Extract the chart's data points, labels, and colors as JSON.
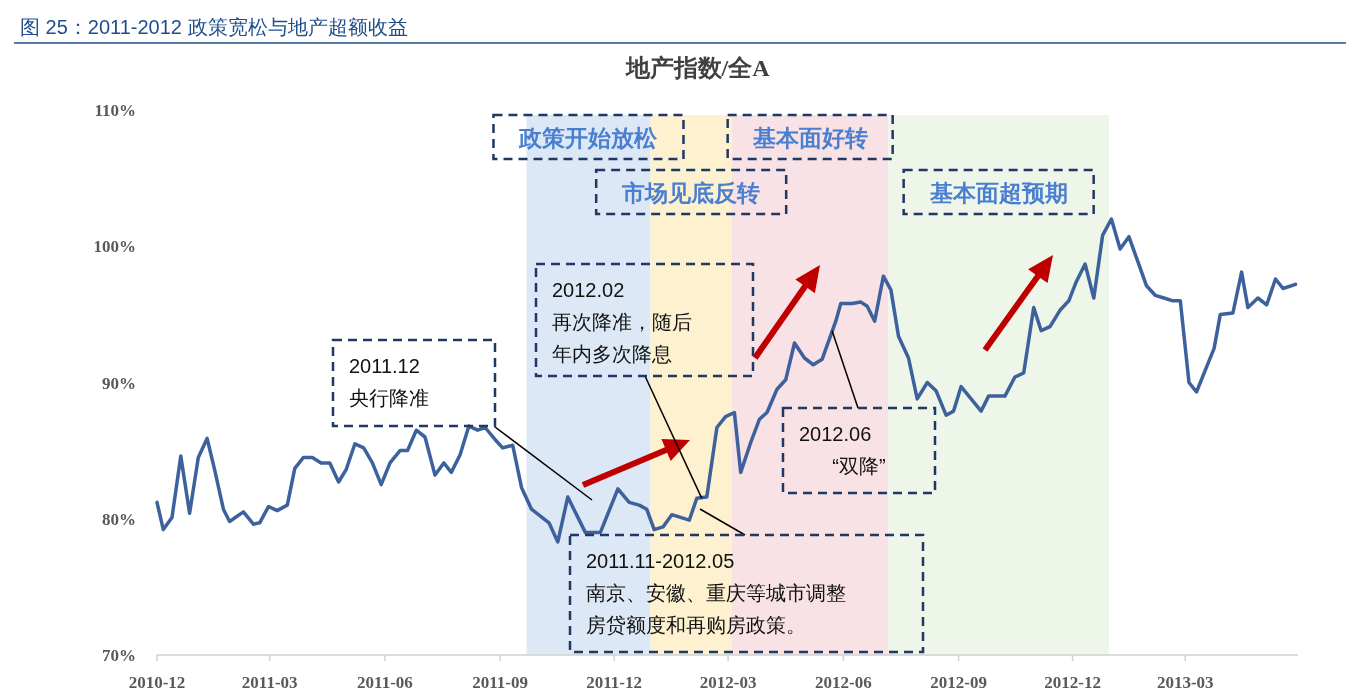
{
  "chart_data": {
    "type": "line",
    "title": "图 25：2011-2012 政策宽松与地产超额收益",
    "subtitle": "地产指数/全A",
    "xlim": [
      "2010-12-01",
      "2013-05-30"
    ],
    "xticks": [
      {
        "value": "2010-12-01",
        "label": "2010-12"
      },
      {
        "value": "2011-03-01",
        "label": "2011-03"
      },
      {
        "value": "2011-06-01",
        "label": "2011-06"
      },
      {
        "value": "2011-09-01",
        "label": "2011-09"
      },
      {
        "value": "2011-12-01",
        "label": "2011-12"
      },
      {
        "value": "2012-03-01",
        "label": "2012-03"
      },
      {
        "value": "2012-06-01",
        "label": "2012-06"
      },
      {
        "value": "2012-09-01",
        "label": "2012-09"
      },
      {
        "value": "2012-12-01",
        "label": "2012-12"
      },
      {
        "value": "2013-03-01",
        "label": "2013-03"
      }
    ],
    "ylim": [
      70,
      110
    ],
    "yticks": [
      {
        "value": 70,
        "label": "70%"
      },
      {
        "value": 80,
        "label": "80%"
      },
      {
        "value": 90,
        "label": "90%"
      },
      {
        "value": 100,
        "label": "100%"
      },
      {
        "value": 110,
        "label": "110%"
      }
    ],
    "grid": false,
    "marker": "none",
    "line_style": "solid",
    "series": [
      {
        "color": "#3d619d",
        "x": [
          "2010-12-01",
          "2010-12-06",
          "2010-12-13",
          "2010-12-20",
          "2010-12-27",
          "2011-01-03",
          "2011-01-10",
          "2011-01-16",
          "2011-01-23",
          "2011-01-28",
          "2011-02-08",
          "2011-02-16",
          "2011-02-21",
          "2011-02-28",
          "2011-03-07",
          "2011-03-15",
          "2011-03-21",
          "2011-03-28",
          "2011-04-04",
          "2011-04-11",
          "2011-04-18",
          "2011-04-25",
          "2011-05-01",
          "2011-05-08",
          "2011-05-15",
          "2011-05-22",
          "2011-05-29",
          "2011-06-05",
          "2011-06-13",
          "2011-06-19",
          "2011-06-26",
          "2011-07-03",
          "2011-07-11",
          "2011-07-18",
          "2011-07-24",
          "2011-07-31",
          "2011-08-07",
          "2011-08-14",
          "2011-08-20",
          "2011-08-28",
          "2011-09-03",
          "2011-09-11",
          "2011-09-18",
          "2011-09-26",
          "2011-10-10",
          "2011-10-17",
          "2011-10-25",
          "2011-11-08",
          "2011-11-20",
          "2011-12-04",
          "2011-12-13",
          "2011-12-21",
          "2011-12-27",
          "2012-01-02",
          "2012-01-09",
          "2012-01-16",
          "2012-01-30",
          "2012-02-05",
          "2012-02-13",
          "2012-02-21",
          "2012-02-28",
          "2012-03-06",
          "2012-03-11",
          "2012-03-19",
          "2012-03-26",
          "2012-04-01",
          "2012-04-09",
          "2012-04-16",
          "2012-04-23",
          "2012-05-01",
          "2012-05-08",
          "2012-05-15",
          "2012-05-26",
          "2012-05-30",
          "2012-06-08",
          "2012-06-15",
          "2012-06-20",
          "2012-06-26",
          "2012-07-03",
          "2012-07-09",
          "2012-07-15",
          "2012-07-23",
          "2012-07-30",
          "2012-08-07",
          "2012-08-14",
          "2012-08-22",
          "2012-08-28",
          "2012-09-03",
          "2012-09-19",
          "2012-09-25",
          "2012-10-08",
          "2012-10-16",
          "2012-10-23",
          "2012-10-31",
          "2012-11-06",
          "2012-11-13",
          "2012-11-21",
          "2012-11-28",
          "2012-12-04",
          "2012-12-11",
          "2012-12-18",
          "2012-12-25",
          "2013-01-01",
          "2013-01-08",
          "2013-01-15",
          "2013-01-22",
          "2013-01-29",
          "2013-02-05",
          "2013-02-12",
          "2013-02-19",
          "2013-02-25",
          "2013-03-04",
          "2013-03-10",
          "2013-03-17",
          "2013-03-24",
          "2013-03-29",
          "2013-04-08",
          "2013-04-15",
          "2013-04-20",
          "2013-04-28",
          "2013-05-05",
          "2013-05-12",
          "2013-05-18",
          "2013-05-28"
        ],
        "values": [
          81.2,
          79.2,
          80.1,
          84.6,
          80.4,
          84.5,
          85.9,
          83.6,
          80.7,
          79.8,
          80.5,
          79.6,
          79.7,
          80.9,
          80.6,
          81.0,
          83.7,
          84.5,
          84.5,
          84.1,
          84.1,
          82.7,
          83.6,
          85.5,
          85.2,
          84.1,
          82.5,
          84.1,
          85.0,
          85.0,
          86.5,
          86.0,
          83.2,
          84.1,
          83.4,
          84.7,
          86.8,
          86.5,
          86.7,
          85.8,
          85.2,
          85.4,
          82.3,
          80.7,
          79.7,
          78.3,
          81.6,
          79.0,
          79.0,
          82.2,
          81.2,
          81.0,
          80.7,
          79.2,
          79.4,
          80.3,
          79.9,
          81.5,
          81.6,
          86.7,
          87.5,
          87.8,
          83.4,
          85.6,
          87.3,
          87.8,
          89.5,
          90.2,
          92.9,
          91.8,
          91.3,
          91.7,
          94.5,
          95.8,
          95.8,
          95.9,
          95.6,
          94.5,
          97.8,
          96.8,
          93.4,
          91.8,
          88.8,
          90.0,
          89.4,
          87.6,
          87.9,
          89.7,
          87.9,
          89.0,
          89.0,
          90.4,
          90.7,
          95.5,
          93.8,
          94.1,
          95.3,
          96.0,
          97.4,
          98.7,
          96.2,
          100.8,
          102.0,
          99.8,
          100.7,
          98.9,
          97.1,
          96.4,
          96.2,
          96.0,
          96.0,
          90.0,
          89.3,
          90.9,
          92.5,
          95.0,
          95.1,
          98.1,
          95.5,
          96.2,
          95.7,
          97.6,
          96.9,
          97.2
        ]
      }
    ],
    "bands": [
      {
        "axis": "x",
        "from": "2011-09-22",
        "to": "2011-12-30",
        "label": "政策开始放松",
        "color": "#dce8f5"
      },
      {
        "axis": "x",
        "from": "2011-12-30",
        "to": "2012-03-04",
        "label": "市场见底反转",
        "color": "#fdf1cf"
      },
      {
        "axis": "x",
        "from": "2012-03-04",
        "to": "2012-07-07",
        "label": "基本面好转",
        "color": "#f9e2e5"
      },
      {
        "axis": "x",
        "from": "2012-07-07",
        "to": "2012-12-30",
        "label": "基本面超预期",
        "color": "#eef6ea"
      }
    ],
    "annotations": [
      "2011.12 央行降准",
      {
        "text": "2012.02 再次降准，随后年内多次降息",
        "x": "2012-02-09",
        "y": 81.5
      },
      {
        "text": "2012.06 “双降”",
        "x": "2012-05-23",
        "y": 93.8
      },
      "2011.11-2012.05 南京、安徽、重庆等城市调整房贷额度和再购房政策。"
    ]
  }
}
